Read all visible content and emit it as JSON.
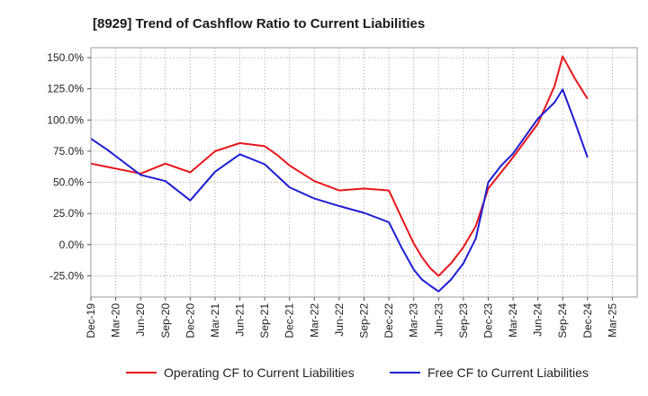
{
  "chart_data": {
    "type": "line",
    "title": "[8929]  Trend of Cashflow Ratio to Current Liabilities",
    "x": [
      "Dec-19",
      "Mar-20",
      "Jun-20",
      "Sep-20",
      "Dec-20",
      "Mar-21",
      "Jun-21",
      "Sep-21",
      "Dec-21",
      "Mar-22",
      "Jun-22",
      "Sep-22",
      "Dec-22",
      "Mar-23",
      "Jun-23",
      "Sep-23",
      "Dec-23",
      "Mar-24",
      "Jun-24",
      "Sep-24",
      "Dec-24",
      "Mar-25"
    ],
    "y_ticks": [
      150,
      125,
      100,
      75,
      50,
      25,
      0,
      -25
    ],
    "y_tick_labels": [
      "150.0%",
      "125.0%",
      "100.0%",
      "75.0%",
      "50.0%",
      "25.0%",
      "0.0%",
      "-25.0%"
    ],
    "ylim": [
      -42,
      158
    ],
    "grid": true,
    "legend_position": "bottom",
    "series": [
      {
        "name": "Operating CF to Current Liabilities",
        "color": "#e8161c",
        "points": [
          [
            0,
            65
          ],
          [
            1,
            61
          ],
          [
            2,
            57
          ],
          [
            3,
            65
          ],
          [
            4,
            58
          ],
          [
            5,
            75
          ],
          [
            6,
            81.5
          ],
          [
            7,
            79
          ],
          [
            7.5,
            72
          ],
          [
            8,
            63.5
          ],
          [
            9,
            51
          ],
          [
            10,
            43.5
          ],
          [
            11,
            45
          ],
          [
            12,
            43.5
          ],
          [
            12.5,
            22
          ],
          [
            13,
            1
          ],
          [
            13.33,
            -10
          ],
          [
            13.67,
            -19
          ],
          [
            14,
            -25
          ],
          [
            14.5,
            -15
          ],
          [
            15,
            -2
          ],
          [
            15.5,
            15
          ],
          [
            16,
            45
          ],
          [
            17,
            70
          ],
          [
            18,
            97
          ],
          [
            18.67,
            127
          ],
          [
            19,
            151
          ],
          [
            19.5,
            133
          ],
          [
            20,
            117
          ]
        ]
      },
      {
        "name": "Free CF to Current Liabilities",
        "color": "#1d1dd4",
        "points": [
          [
            0,
            85
          ],
          [
            0.67,
            76
          ],
          [
            1,
            71
          ],
          [
            2,
            56
          ],
          [
            3,
            51
          ],
          [
            4,
            35.5
          ],
          [
            5,
            58.5
          ],
          [
            6,
            72.5
          ],
          [
            7,
            64.5
          ],
          [
            8,
            46
          ],
          [
            9,
            37
          ],
          [
            10,
            31
          ],
          [
            11,
            25.5
          ],
          [
            12,
            18
          ],
          [
            12.5,
            -2
          ],
          [
            13,
            -20
          ],
          [
            13.33,
            -28
          ],
          [
            13.67,
            -33
          ],
          [
            14,
            -37.5
          ],
          [
            14.5,
            -28
          ],
          [
            15,
            -15
          ],
          [
            15.5,
            5
          ],
          [
            16,
            50
          ],
          [
            16.5,
            63
          ],
          [
            17,
            73
          ],
          [
            18,
            101
          ],
          [
            18.67,
            114
          ],
          [
            19,
            124.5
          ],
          [
            19.5,
            98
          ],
          [
            20,
            70
          ]
        ]
      }
    ]
  }
}
